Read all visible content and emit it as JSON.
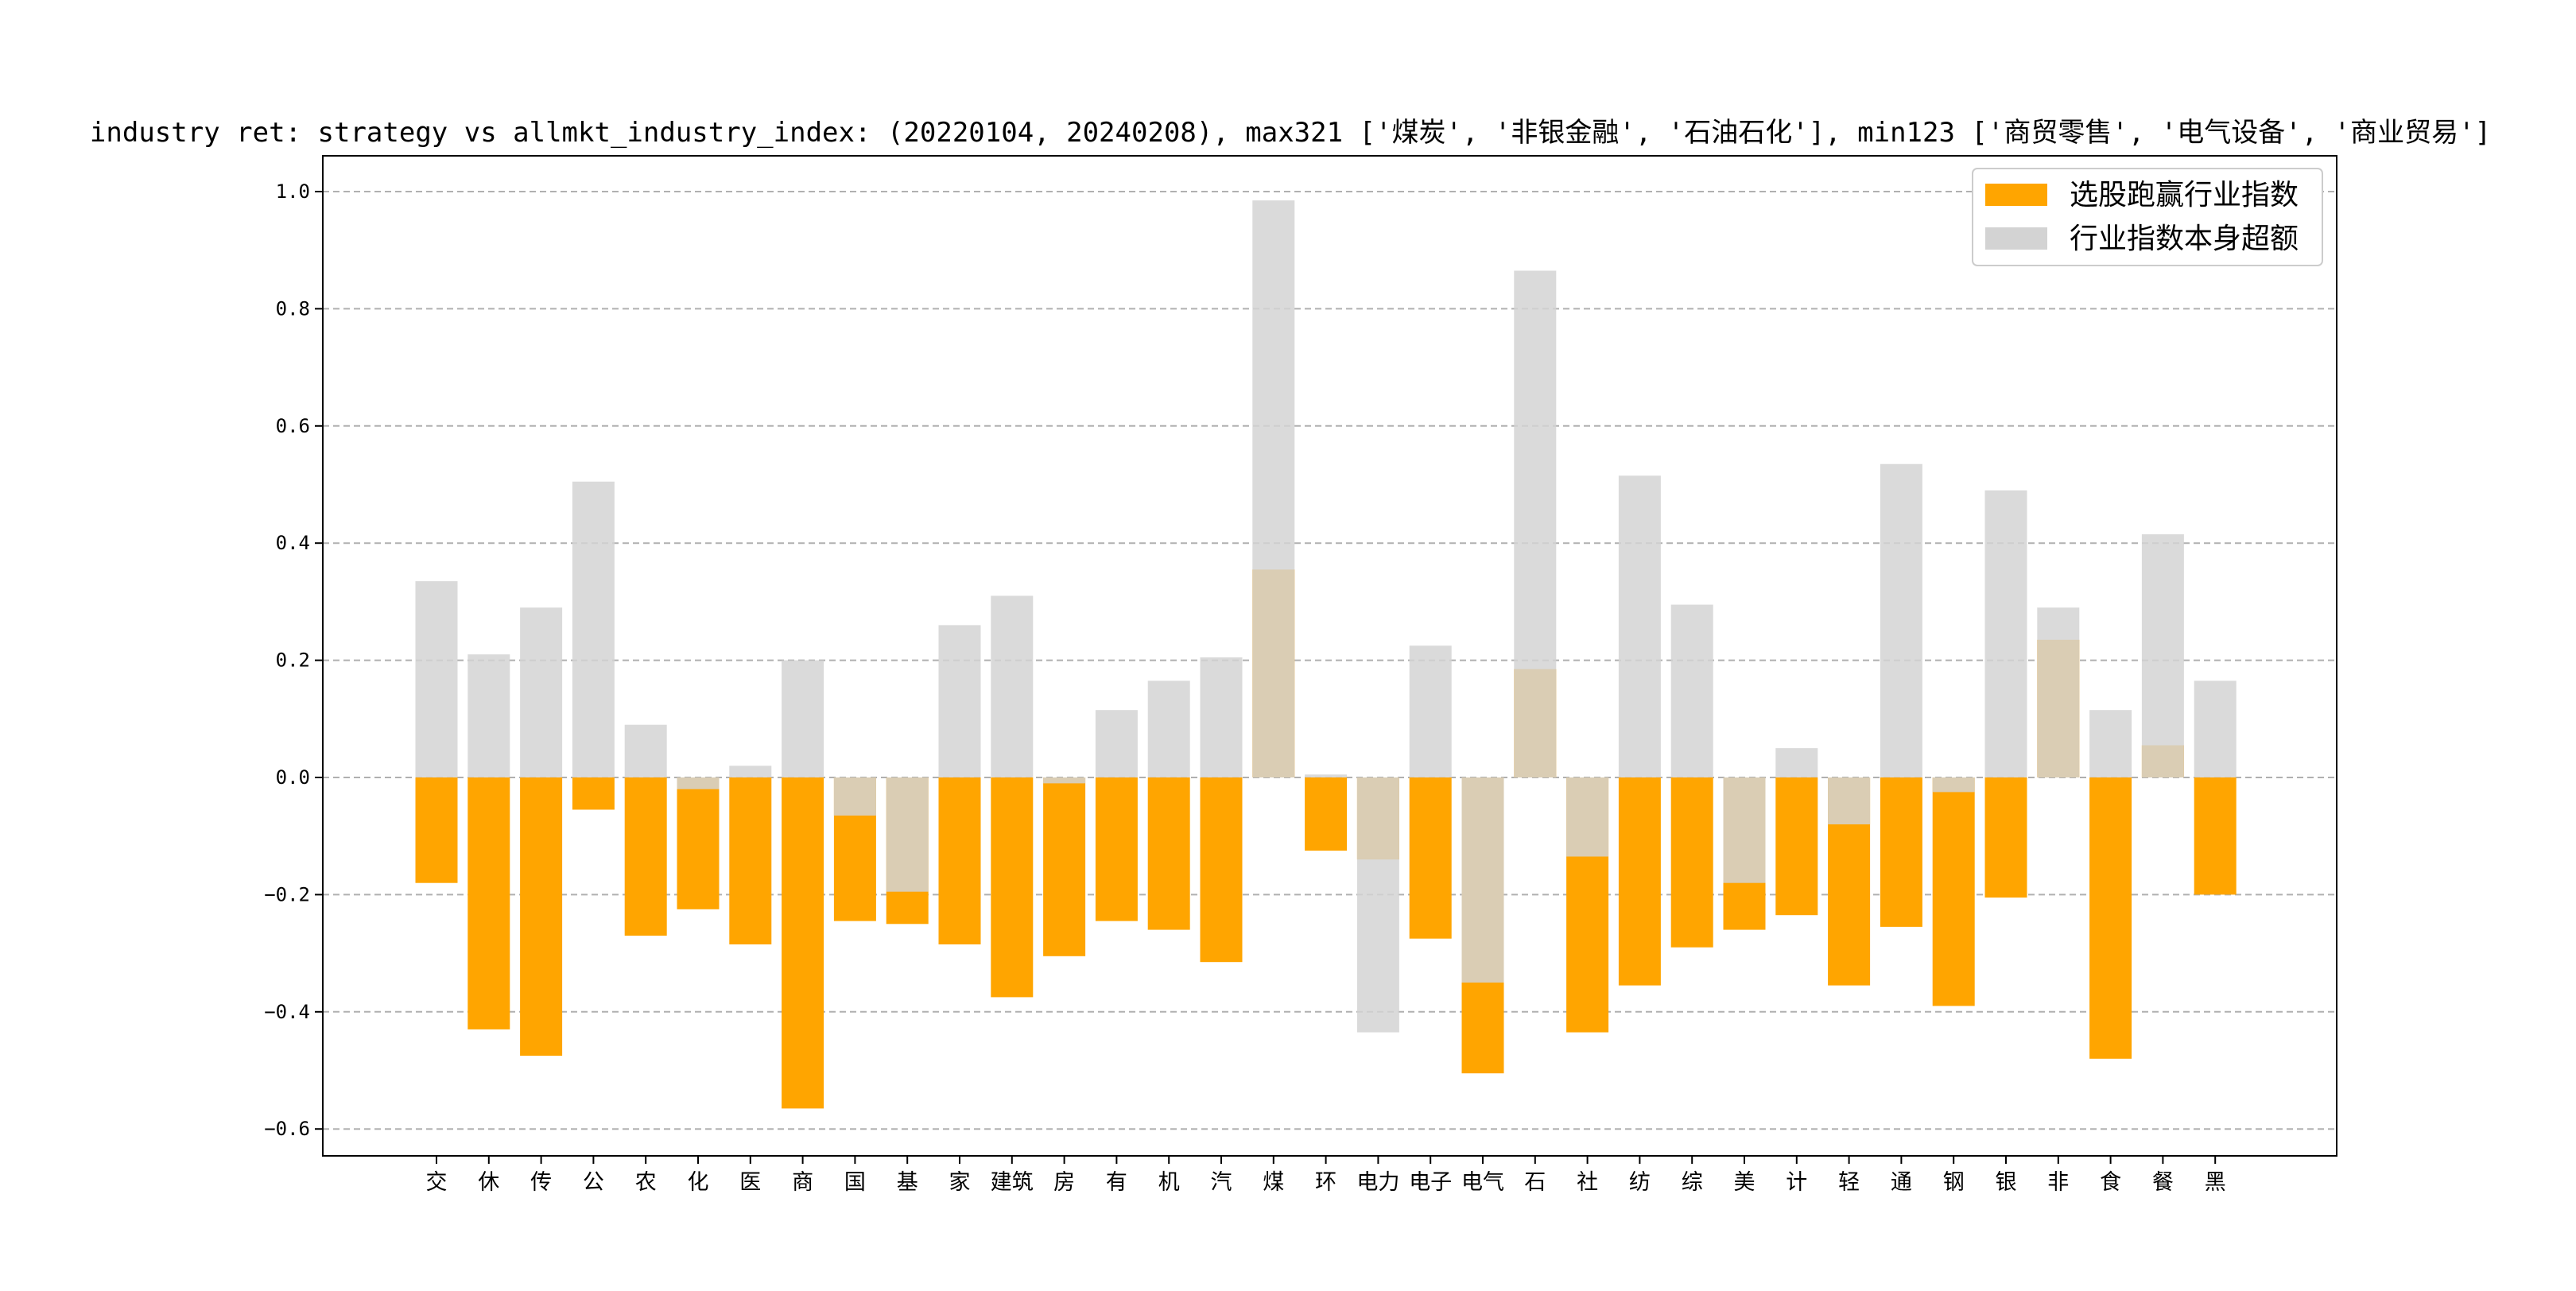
{
  "chart_data": {
    "type": "bar",
    "title": "industry ret: strategy vs allmkt_industry_index: (20220104, 20240208), max321 ['煤炭', '非银金融', '石油石化'], min123 ['商贸零售', '电气设备', '商业贸易']",
    "xlabel": "",
    "ylabel": "",
    "ylim": [
      -0.64,
      1.06
    ],
    "yticks": [
      -0.6,
      -0.4,
      -0.2,
      0.0,
      0.2,
      0.4,
      0.6,
      0.8,
      1.0
    ],
    "ytick_labels": [
      "−0.6",
      "−0.4",
      "−0.2",
      "0.0",
      "0.2",
      "0.4",
      "0.6",
      "0.8",
      "1.0"
    ],
    "grid": "horizontal dashed",
    "legend_position": "top-right",
    "categories": [
      "交",
      "休",
      "传",
      "公",
      "农",
      "化",
      "医",
      "商",
      "国",
      "基",
      "家",
      "建筑",
      "房",
      "有",
      "机",
      "汽",
      "煤",
      "环",
      "电力",
      "电子",
      "电气",
      "石",
      "社",
      "纺",
      "综",
      "美",
      "计",
      "轻",
      "通",
      "钢",
      "银",
      "非",
      "食",
      "餐",
      "黑"
    ],
    "series": [
      {
        "name": "选股跑赢行业指数",
        "color": "#ffa500",
        "values": [
          -0.18,
          -0.43,
          -0.475,
          -0.055,
          -0.27,
          -0.225,
          -0.285,
          -0.565,
          -0.245,
          -0.25,
          -0.285,
          -0.375,
          -0.305,
          -0.245,
          -0.26,
          -0.315,
          0.355,
          -0.125,
          -0.14,
          -0.275,
          -0.505,
          0.185,
          -0.435,
          -0.355,
          -0.29,
          -0.26,
          -0.235,
          -0.355,
          -0.255,
          -0.39,
          -0.205,
          0.235,
          -0.48,
          0.055,
          -0.2
        ]
      },
      {
        "name": "行业指数本身超额",
        "color": "#d3d3d3",
        "values": [
          0.335,
          0.21,
          0.29,
          0.505,
          0.09,
          -0.02,
          0.02,
          0.2,
          -0.065,
          -0.195,
          0.26,
          0.31,
          -0.01,
          0.115,
          0.165,
          0.205,
          0.985,
          0.005,
          -0.435,
          0.225,
          -0.35,
          0.865,
          -0.135,
          0.515,
          0.295,
          -0.18,
          0.05,
          -0.08,
          0.535,
          -0.025,
          0.49,
          0.29,
          0.115,
          0.415,
          0.165
        ]
      }
    ]
  }
}
